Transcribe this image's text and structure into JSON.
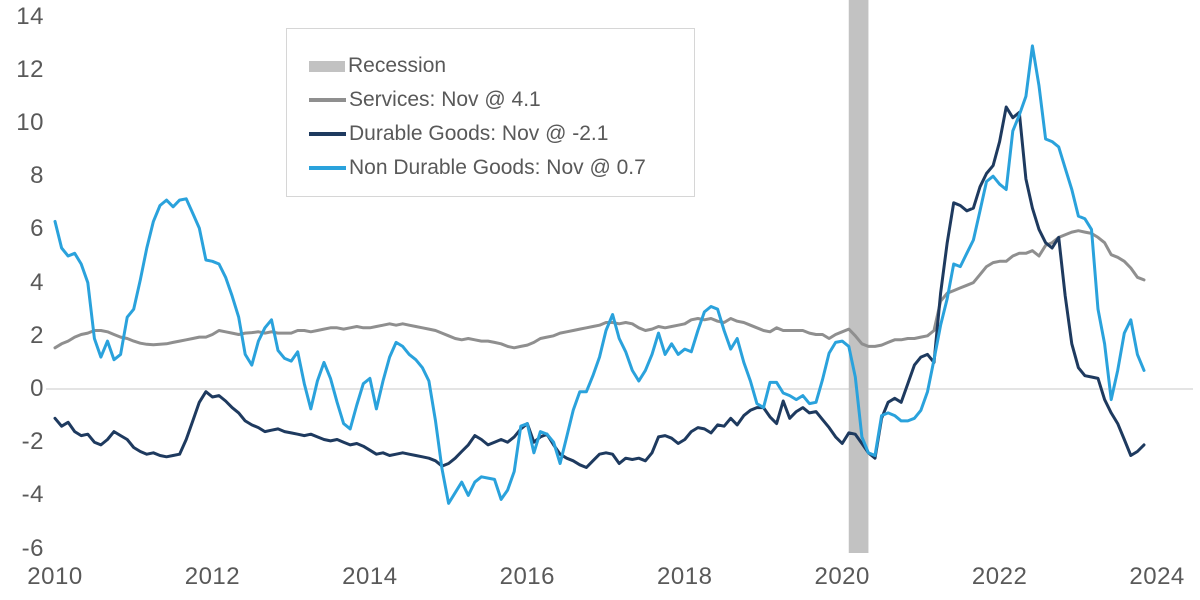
{
  "page": {
    "background": "#ffffff"
  },
  "axis": {
    "tick_color": "#595959",
    "y_ticks": [
      14,
      12,
      10,
      8,
      6,
      4,
      2,
      0,
      -2,
      -4,
      -6
    ],
    "x_tick_labels": [
      "2010",
      "2012",
      "2014",
      "2016",
      "2018",
      "2020",
      "2022",
      "2024"
    ]
  },
  "chart_data": {
    "type": "line",
    "title": "",
    "frequency": "monthly",
    "x_range": [
      "2010-01",
      "2023-11"
    ],
    "ylim": [
      -6,
      14
    ],
    "y_tick_step": 2,
    "grid": "zero-line-only",
    "legend_position": "top-left",
    "zero_line_color": "#dcdcdc",
    "recession_band": {
      "label": "Recession",
      "start": "2020-02",
      "end": "2020-04",
      "color": "#c2c2c2"
    },
    "series": [
      {
        "name": "Services",
        "legend_label": "Services: Nov @ 4.1",
        "latest_month": "Nov",
        "latest_value": 4.1,
        "color": "#8f8f8f",
        "values": [
          1.55,
          1.7,
          1.8,
          1.95,
          2.05,
          2.1,
          2.2,
          2.2,
          2.15,
          2.05,
          1.95,
          1.9,
          1.8,
          1.72,
          1.68,
          1.66,
          1.68,
          1.7,
          1.75,
          1.8,
          1.85,
          1.9,
          1.95,
          1.95,
          2.05,
          2.2,
          2.15,
          2.1,
          2.05,
          2.1,
          2.12,
          2.15,
          2.1,
          2.15,
          2.1,
          2.1,
          2.1,
          2.2,
          2.2,
          2.15,
          2.2,
          2.25,
          2.3,
          2.3,
          2.25,
          2.3,
          2.35,
          2.3,
          2.3,
          2.35,
          2.4,
          2.45,
          2.4,
          2.45,
          2.4,
          2.35,
          2.3,
          2.25,
          2.2,
          2.1,
          2.0,
          1.9,
          1.85,
          1.9,
          1.85,
          1.8,
          1.8,
          1.75,
          1.7,
          1.6,
          1.55,
          1.6,
          1.65,
          1.75,
          1.9,
          1.95,
          2.0,
          2.1,
          2.15,
          2.2,
          2.25,
          2.3,
          2.35,
          2.4,
          2.5,
          2.5,
          2.45,
          2.5,
          2.45,
          2.3,
          2.2,
          2.25,
          2.35,
          2.3,
          2.35,
          2.4,
          2.45,
          2.6,
          2.65,
          2.6,
          2.65,
          2.55,
          2.5,
          2.65,
          2.55,
          2.5,
          2.4,
          2.3,
          2.2,
          2.15,
          2.3,
          2.2,
          2.2,
          2.2,
          2.2,
          2.1,
          2.05,
          2.05,
          1.9,
          2.05,
          2.15,
          2.25,
          2.0,
          1.7,
          1.6,
          1.6,
          1.65,
          1.75,
          1.85,
          1.85,
          1.9,
          1.9,
          1.95,
          2.0,
          2.2,
          3.3,
          3.6,
          3.7,
          3.8,
          3.9,
          4.0,
          4.3,
          4.6,
          4.75,
          4.8,
          4.8,
          5.0,
          5.1,
          5.1,
          5.2,
          5.0,
          5.4,
          5.5,
          5.7,
          5.8,
          5.9,
          5.95,
          5.9,
          5.85,
          5.7,
          5.5,
          5.05,
          4.95,
          4.8,
          4.55,
          4.2,
          4.1
        ]
      },
      {
        "name": "Durable Goods",
        "legend_label": "Durable Goods: Nov @ -2.1",
        "latest_month": "Nov",
        "latest_value": -2.1,
        "color": "#1e3a5f",
        "values": [
          -1.1,
          -1.4,
          -1.25,
          -1.6,
          -1.75,
          -1.7,
          -2.0,
          -2.1,
          -1.9,
          -1.6,
          -1.75,
          -1.9,
          -2.2,
          -2.35,
          -2.45,
          -2.4,
          -2.5,
          -2.55,
          -2.5,
          -2.45,
          -1.9,
          -1.2,
          -0.5,
          -0.1,
          -0.3,
          -0.25,
          -0.45,
          -0.7,
          -0.9,
          -1.2,
          -1.35,
          -1.45,
          -1.6,
          -1.55,
          -1.5,
          -1.6,
          -1.65,
          -1.7,
          -1.75,
          -1.7,
          -1.8,
          -1.9,
          -1.95,
          -1.9,
          -2.0,
          -2.1,
          -2.05,
          -2.15,
          -2.3,
          -2.45,
          -2.4,
          -2.5,
          -2.45,
          -2.4,
          -2.45,
          -2.5,
          -2.55,
          -2.6,
          -2.7,
          -2.9,
          -2.8,
          -2.6,
          -2.35,
          -2.1,
          -1.75,
          -1.9,
          -2.1,
          -2.0,
          -1.9,
          -2.0,
          -1.8,
          -1.5,
          -1.3,
          -2.0,
          -1.8,
          -1.7,
          -2.1,
          -2.45,
          -2.6,
          -2.7,
          -2.85,
          -2.95,
          -2.7,
          -2.45,
          -2.4,
          -2.45,
          -2.8,
          -2.6,
          -2.65,
          -2.6,
          -2.7,
          -2.4,
          -1.8,
          -1.75,
          -1.85,
          -2.05,
          -1.9,
          -1.6,
          -1.45,
          -1.5,
          -1.65,
          -1.35,
          -1.4,
          -1.1,
          -1.35,
          -1.0,
          -0.8,
          -0.7,
          -0.7,
          -1.05,
          -1.3,
          -0.45,
          -1.1,
          -0.85,
          -0.7,
          -0.9,
          -0.85,
          -1.15,
          -1.45,
          -1.8,
          -2.05,
          -1.65,
          -1.7,
          -2.05,
          -2.4,
          -2.6,
          -1.1,
          -0.5,
          -0.35,
          -0.5,
          0.2,
          0.9,
          1.2,
          1.3,
          1.0,
          3.6,
          5.5,
          7.0,
          6.9,
          6.7,
          6.8,
          7.6,
          8.1,
          8.4,
          9.3,
          10.6,
          10.2,
          10.4,
          7.9,
          6.8,
          6.0,
          5.5,
          5.3,
          5.7,
          3.5,
          1.7,
          0.8,
          0.5,
          0.45,
          0.4,
          -0.4,
          -0.9,
          -1.3,
          -1.9,
          -2.5,
          -2.35,
          -2.1
        ]
      },
      {
        "name": "Non Durable Goods",
        "legend_label": "Non Durable Goods: Nov @ 0.7",
        "latest_month": "Nov",
        "latest_value": 0.7,
        "color": "#2aa2dc",
        "values": [
          6.3,
          5.3,
          5.0,
          5.1,
          4.7,
          4.0,
          1.9,
          1.2,
          1.8,
          1.1,
          1.3,
          2.7,
          3.0,
          4.1,
          5.3,
          6.3,
          6.9,
          7.1,
          6.85,
          7.1,
          7.15,
          6.6,
          6.05,
          4.85,
          4.8,
          4.7,
          4.2,
          3.5,
          2.7,
          1.3,
          0.9,
          1.8,
          2.3,
          2.6,
          1.45,
          1.15,
          1.05,
          1.4,
          0.2,
          -0.75,
          0.3,
          1.0,
          0.4,
          -0.5,
          -1.3,
          -1.5,
          -0.6,
          0.2,
          0.4,
          -0.75,
          0.3,
          1.2,
          1.75,
          1.6,
          1.3,
          1.1,
          0.8,
          0.3,
          -1.2,
          -3.0,
          -4.3,
          -3.9,
          -3.5,
          -4.0,
          -3.5,
          -3.3,
          -3.35,
          -3.4,
          -4.15,
          -3.8,
          -3.1,
          -1.4,
          -1.3,
          -2.4,
          -1.6,
          -1.7,
          -2.0,
          -2.8,
          -1.8,
          -0.8,
          -0.1,
          -0.1,
          0.5,
          1.2,
          2.2,
          2.8,
          1.9,
          1.4,
          0.7,
          0.3,
          0.7,
          1.3,
          2.1,
          1.3,
          1.7,
          1.3,
          1.5,
          1.4,
          2.2,
          2.9,
          3.1,
          3.0,
          2.2,
          1.5,
          1.9,
          1.0,
          0.3,
          -0.55,
          -0.7,
          0.25,
          0.25,
          -0.15,
          -0.25,
          -0.4,
          -0.25,
          -0.55,
          -0.5,
          0.35,
          1.35,
          1.75,
          1.8,
          1.6,
          0.45,
          -1.8,
          -2.4,
          -2.5,
          -1.0,
          -0.9,
          -1.0,
          -1.2,
          -1.2,
          -1.1,
          -0.8,
          -0.1,
          1.1,
          2.4,
          3.4,
          4.7,
          4.6,
          5.1,
          5.6,
          6.7,
          7.8,
          8.0,
          7.7,
          7.5,
          9.7,
          10.3,
          11.0,
          12.9,
          11.4,
          9.4,
          9.3,
          9.1,
          8.3,
          7.5,
          6.5,
          6.4,
          6.0,
          3.0,
          1.7,
          -0.4,
          0.7,
          2.1,
          2.6,
          1.3,
          0.7
        ]
      }
    ]
  }
}
